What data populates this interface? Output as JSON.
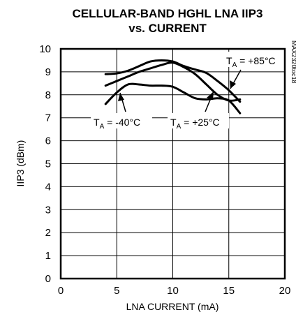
{
  "chart_data": {
    "type": "line",
    "title_line1": "CELLULAR-BAND HGHL LNA IIP3",
    "title_line2": "vs. CURRENT",
    "xlabel": "LNA CURRENT (mA)",
    "ylabel": "IIP3 (dBm)",
    "xlim": [
      0,
      20
    ],
    "ylim": [
      0,
      10
    ],
    "x_ticks": [
      0,
      5,
      10,
      15,
      20
    ],
    "y_ticks": [
      0,
      1,
      2,
      3,
      4,
      5,
      6,
      7,
      8,
      9,
      10
    ],
    "grid": true,
    "series": [
      {
        "name": "TA = +85°C",
        "x": [
          4,
          5,
          6,
          7,
          8,
          9,
          10,
          11,
          12,
          13,
          14,
          15,
          16
        ],
        "y": [
          8.9,
          8.93,
          9.05,
          9.25,
          9.45,
          9.5,
          9.45,
          9.25,
          9.1,
          8.95,
          8.6,
          8.2,
          7.7
        ]
      },
      {
        "name": "TA = +25°C",
        "x": [
          4,
          5,
          6,
          7,
          8,
          9,
          10,
          11,
          12,
          13,
          14,
          15,
          16
        ],
        "y": [
          8.4,
          8.6,
          8.8,
          9.0,
          9.15,
          9.3,
          9.4,
          9.2,
          8.9,
          8.45,
          8.0,
          7.75,
          7.8
        ]
      },
      {
        "name": "TA = -40°C",
        "x": [
          4,
          5,
          6,
          7,
          8,
          9,
          10,
          11,
          12,
          13,
          14,
          15,
          16
        ],
        "y": [
          7.6,
          8.1,
          8.45,
          8.45,
          8.4,
          8.4,
          8.35,
          8.1,
          7.85,
          7.8,
          7.85,
          7.75,
          7.2
        ]
      }
    ],
    "annotations": [
      {
        "prefix": "T",
        "sub": "A",
        "text": " = +85°C"
      },
      {
        "prefix": "T",
        "sub": "A",
        "text": " = -40°C"
      },
      {
        "prefix": "T",
        "sub": "A",
        "text": " = +25°C"
      }
    ],
    "side_code": "MAX2320toc18"
  }
}
